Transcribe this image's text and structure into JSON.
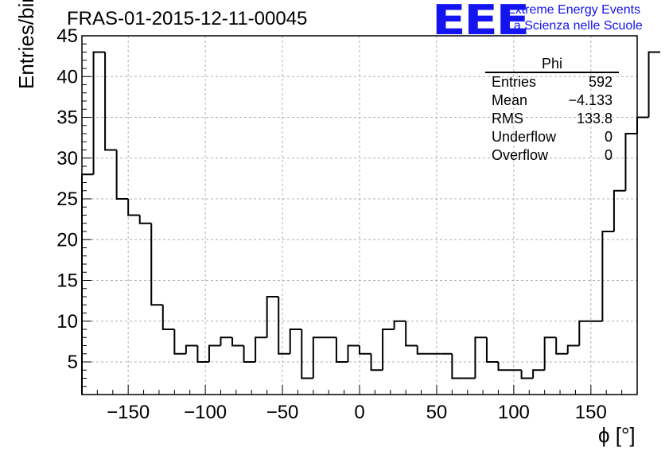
{
  "title": "FRAS-01-2015-12-11-00045",
  "logo": {
    "mark": "EEE",
    "line1": "Extreme Energy Events",
    "line2": "La Scienza nelle Scuole",
    "color": "#1414f0"
  },
  "stats_box": {
    "title": "Phi",
    "rows": [
      {
        "key": "Entries",
        "value": "592"
      },
      {
        "key": "Mean",
        "value": "−4.133"
      },
      {
        "key": "RMS",
        "value": "133.8"
      },
      {
        "key": "Underflow",
        "value": "0"
      },
      {
        "key": "Overflow",
        "value": "0"
      }
    ]
  },
  "chart_data": {
    "type": "bar",
    "histogram": true,
    "xlabel": "ϕ [°]",
    "ylabel": "Entries/bin",
    "xlim": [
      -180,
      180
    ],
    "ylim": [
      1,
      45
    ],
    "bin_width": 7.5,
    "bin_start": -180,
    "values": [
      28,
      43,
      31,
      25,
      23,
      22,
      12,
      9,
      6,
      7,
      5,
      7,
      8,
      7,
      5,
      8,
      13,
      6,
      9,
      3,
      8,
      8,
      5,
      7,
      6,
      4,
      9,
      10,
      7,
      6,
      6,
      6,
      3,
      3,
      8,
      5,
      4,
      4,
      3,
      4,
      8,
      6,
      7,
      10,
      10,
      21,
      26,
      33,
      35,
      43
    ],
    "x_ticks": [
      -150,
      -100,
      -50,
      0,
      50,
      100,
      150
    ],
    "x_tick_labels": [
      "−150",
      "−100",
      "−50",
      "0",
      "50",
      "100",
      "150"
    ],
    "y_ticks": [
      5,
      10,
      15,
      20,
      25,
      30,
      35,
      40,
      45
    ],
    "y_tick_labels": [
      "5",
      "10",
      "15",
      "20",
      "25",
      "30",
      "35",
      "40",
      "45"
    ],
    "grid": true,
    "line_color": "#000000"
  }
}
